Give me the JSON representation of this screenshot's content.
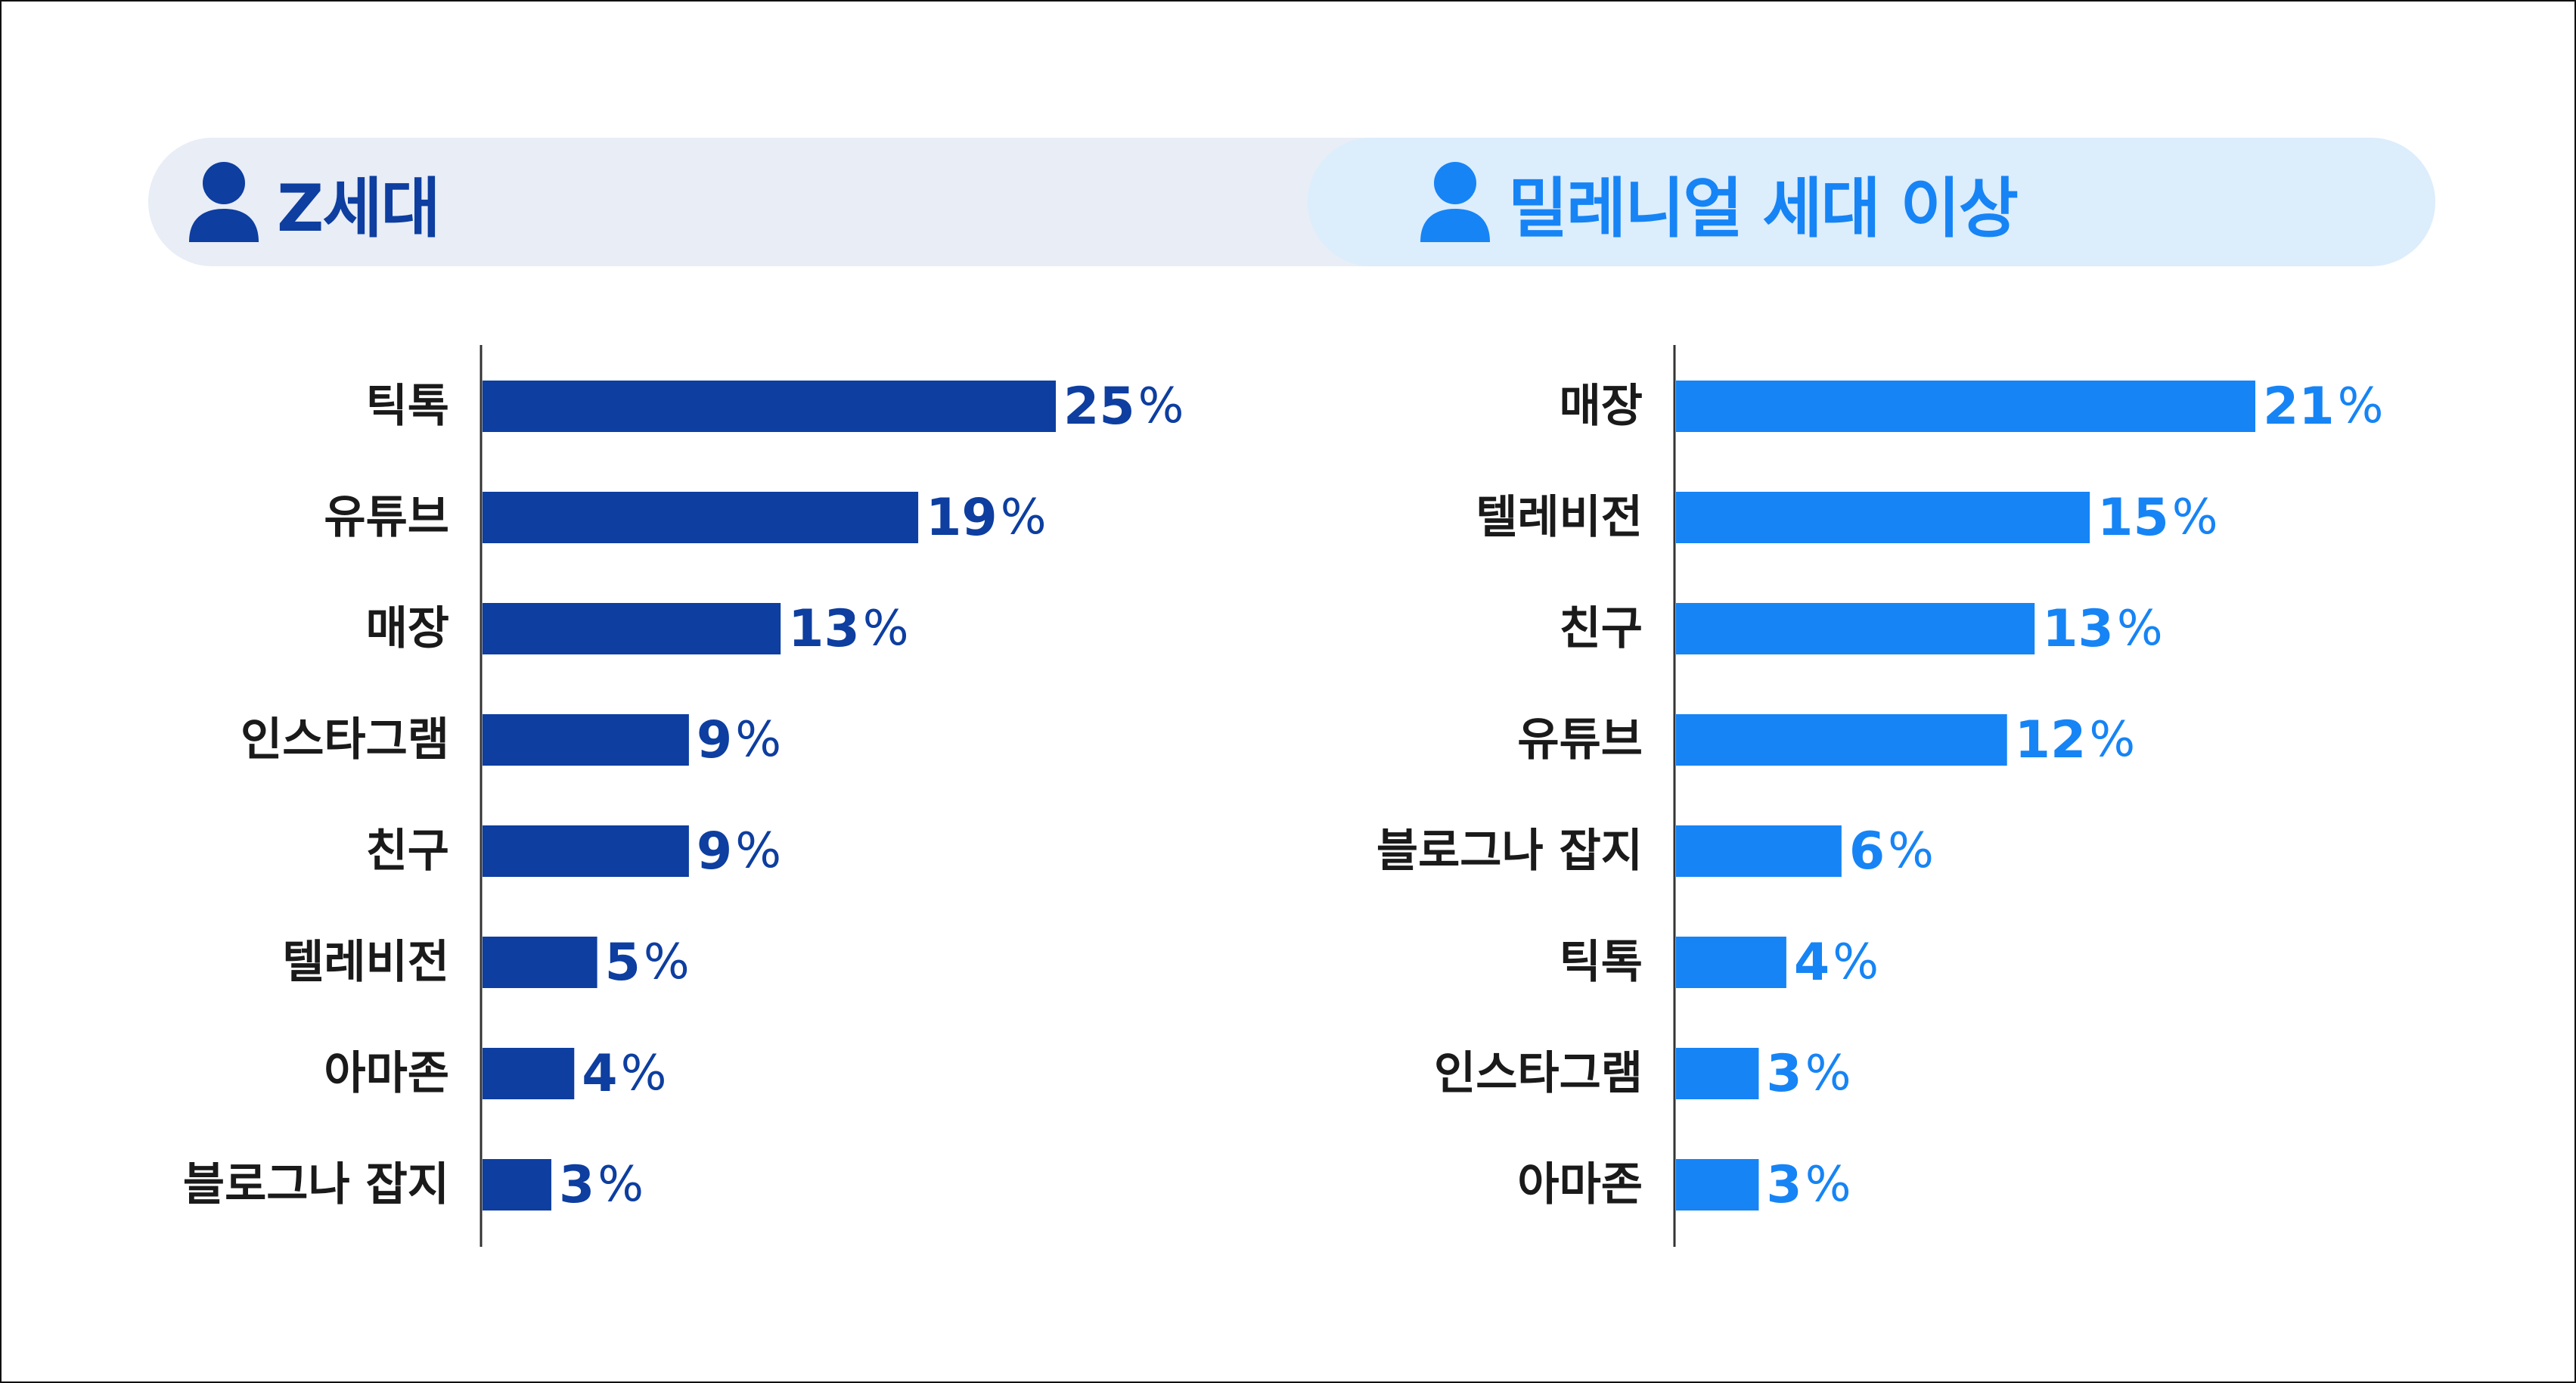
{
  "colors": {
    "z_series": "#0d3ea0",
    "millennial_series": "#1684f5"
  },
  "header": {
    "left": {
      "icon": "person-icon",
      "label": "Z세대"
    },
    "right": {
      "icon": "person-icon",
      "label": "밀레니얼 세대 이상"
    }
  },
  "chart_data": [
    {
      "type": "bar",
      "orientation": "horizontal",
      "title": "Z세대",
      "categories": [
        "틱톡",
        "유튜브",
        "매장",
        "인스타그램",
        "친구",
        "텔레비전",
        "아마존",
        "블로그나 잡지"
      ],
      "values": [
        25,
        19,
        13,
        9,
        9,
        5,
        4,
        3
      ],
      "unit": "%",
      "xlim": [
        0,
        25
      ]
    },
    {
      "type": "bar",
      "orientation": "horizontal",
      "title": "밀레니얼 세대 이상",
      "categories": [
        "매장",
        "텔레비전",
        "친구",
        "유튜브",
        "블로그나 잡지",
        "틱톡",
        "인스타그램",
        "아마존"
      ],
      "values": [
        21,
        15,
        13,
        12,
        6,
        4,
        3,
        3
      ],
      "unit": "%",
      "xlim": [
        0,
        21
      ]
    }
  ]
}
